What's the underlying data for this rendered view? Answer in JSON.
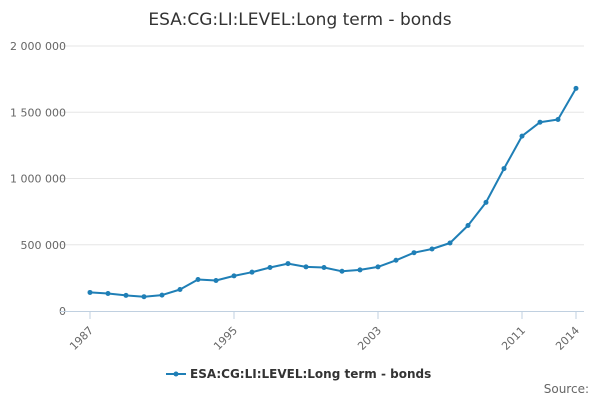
{
  "chart_data": {
    "type": "line",
    "title": "ESA:CG:LI:LEVEL:Long term - bonds",
    "xlabel": "",
    "ylabel": "",
    "ylim": [
      0,
      2000000
    ],
    "yticks": [
      0,
      500000,
      1000000,
      1500000,
      2000000
    ],
    "ytick_labels": [
      "0",
      "500 000",
      "1 000 000",
      "1 500 000",
      "2 000 000"
    ],
    "xlim": [
      1987,
      2014
    ],
    "xticks": [
      1987,
      1995,
      2003,
      2011,
      2014
    ],
    "xtick_labels": [
      "1987",
      "1995",
      "2003",
      "2011",
      "2014"
    ],
    "grid": true,
    "legend": "bottom-center",
    "colors": {
      "series": "#1f7fb6"
    },
    "series": [
      {
        "name": "ESA:CG:LI:LEVEL:Long term - bonds",
        "x": [
          1987,
          1988,
          1989,
          1990,
          1991,
          1992,
          1993,
          1994,
          1995,
          1996,
          1997,
          1998,
          1999,
          2000,
          2001,
          2002,
          2003,
          2004,
          2005,
          2006,
          2007,
          2008,
          2009,
          2010,
          2011,
          2012,
          2013,
          2014
        ],
        "values": [
          140000,
          132000,
          118000,
          108000,
          120000,
          162000,
          238000,
          230000,
          265000,
          293000,
          328000,
          358000,
          333000,
          328000,
          300000,
          310000,
          333000,
          383000,
          440000,
          468000,
          513000,
          645000,
          820000,
          1075000,
          1320000,
          1425000,
          1445000,
          1680000
        ]
      }
    ]
  },
  "source_label": "Source:"
}
